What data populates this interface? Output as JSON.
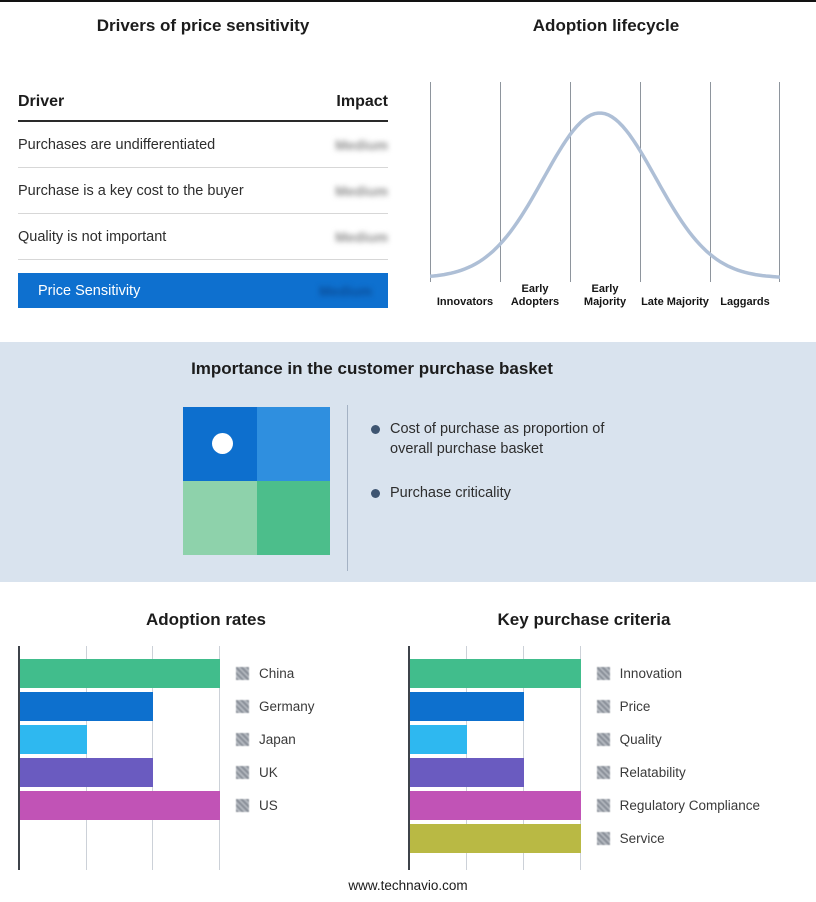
{
  "basket": {
    "title": "Importance in the customer purchase basket",
    "bullets": [
      "Cost of purchase as proportion of overall purchase basket",
      "Purchase criticality"
    ],
    "band_color": "#d9e3ee",
    "quadrant_colors": {
      "tl": "#0d6fce",
      "tr": "#2f8fdf",
      "bl": "#8ed2ab",
      "br": "#4cbe8b"
    }
  },
  "footer": {
    "text": "www.technavio.com"
  },
  "chart_data": [
    {
      "id": "drivers-of-price-sensitivity",
      "type": "table",
      "title": "Drivers of price sensitivity",
      "columns": [
        "Driver",
        "Impact"
      ],
      "rows": [
        [
          "Purchases are undifferentiated",
          "Medium"
        ],
        [
          "Purchase is a key cost to the buyer",
          "Medium"
        ],
        [
          "Quality is not important",
          "Medium"
        ]
      ],
      "highlight_row": {
        "label": "Price Sensitivity",
        "impact": "Medium",
        "bg": "#0e70cf"
      },
      "impact_values_blurred": true
    },
    {
      "id": "adoption-lifecycle",
      "type": "line",
      "title": "Adoption lifecycle",
      "categories": [
        "Innovators",
        "Early Adopters",
        "Early Majority",
        "Late Majority",
        "Laggards"
      ],
      "curve": "bell",
      "peak_category": "Early Majority",
      "curve_color": "#aebfd6",
      "grid": true
    },
    {
      "id": "adoption-rates",
      "type": "bar",
      "orientation": "horizontal",
      "title": "Adoption rates",
      "categories": [
        "China",
        "Germany",
        "Japan",
        "UK",
        "US"
      ],
      "values": [
        3,
        2,
        1,
        2,
        3
      ],
      "xlim": [
        0,
        3
      ],
      "colors": [
        "#41bd8c",
        "#0d70ce",
        "#2eb8f0",
        "#6a5bc0",
        "#c153b6"
      ],
      "value_labels_hidden": true,
      "legend_position": "right"
    },
    {
      "id": "key-purchase-criteria",
      "type": "bar",
      "orientation": "horizontal",
      "title": "Key purchase criteria",
      "categories": [
        "Innovation",
        "Price",
        "Quality",
        "Relatability",
        "Regulatory Compliance",
        "Service"
      ],
      "values": [
        3,
        2,
        1,
        2,
        3,
        3
      ],
      "xlim": [
        0,
        3
      ],
      "colors": [
        "#41bd8c",
        "#0d70ce",
        "#2eb8f0",
        "#6a5bc0",
        "#c153b6",
        "#b9b944"
      ],
      "value_labels_hidden": true,
      "legend_position": "right"
    }
  ]
}
